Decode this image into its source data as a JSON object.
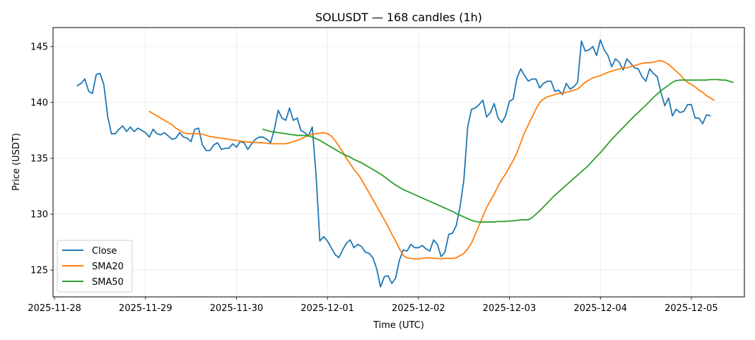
{
  "chart_data": {
    "type": "line",
    "title": "SOLUSDT — 168 candles (1h)",
    "xlabel": "Time (UTC)",
    "ylabel": "Price (USDT)",
    "x_ticks": [
      "2025-11-28",
      "2025-11-29",
      "2025-11-30",
      "2025-12-01",
      "2025-12-02",
      "2025-12-03",
      "2025-12-04",
      "2025-12-05"
    ],
    "x_range": [
      -6.4,
      176.0
    ],
    "x_tick_hours": [
      -6,
      18,
      42,
      66,
      90,
      114,
      138,
      162
    ],
    "ylim": [
      122.6,
      146.7
    ],
    "y_ticks": [
      125,
      130,
      135,
      140,
      145
    ],
    "grid": true,
    "legend_position": "lower-left",
    "colors": {
      "Close": "#1f77b4",
      "SMA20": "#ff7f0e",
      "SMA50": "#2ca02c"
    },
    "series": [
      {
        "name": "Close",
        "x_start_hour": 0,
        "values": [
          141.5,
          141.7,
          142.1,
          141.0,
          140.8,
          142.5,
          142.6,
          141.6,
          138.8,
          137.2,
          137.2,
          137.6,
          137.9,
          137.4,
          137.8,
          137.4,
          137.7,
          137.5,
          137.3,
          136.9,
          137.6,
          137.2,
          137.1,
          137.3,
          137.0,
          136.7,
          136.8,
          137.3,
          136.9,
          136.8,
          136.5,
          137.6,
          137.7,
          136.2,
          135.7,
          135.7,
          136.2,
          136.4,
          135.8,
          135.9,
          135.9,
          136.3,
          136.0,
          136.5,
          136.4,
          135.8,
          136.3,
          136.7,
          136.9,
          136.9,
          136.7,
          136.4,
          137.6,
          139.3,
          138.6,
          138.4,
          139.5,
          138.4,
          138.6,
          137.5,
          137.3,
          137.0,
          137.8,
          133.5,
          127.6,
          128.0,
          127.6,
          127.0,
          126.4,
          126.1,
          126.8,
          127.4,
          127.7,
          127.0,
          127.3,
          127.1,
          126.6,
          126.5,
          126.1,
          125.1,
          123.5,
          124.4,
          124.5,
          123.8,
          124.3,
          125.9,
          126.8,
          126.7,
          127.3,
          127.0,
          127.0,
          127.2,
          126.9,
          126.7,
          127.7,
          127.3,
          126.2,
          126.6,
          128.2,
          128.3,
          129.0,
          130.7,
          133.1,
          137.8,
          139.4,
          139.5,
          139.8,
          140.2,
          138.7,
          139.1,
          139.9,
          138.6,
          138.2,
          138.8,
          140.1,
          140.3,
          142.2,
          143.0,
          142.4,
          141.9,
          142.1,
          142.1,
          141.3,
          141.7,
          141.9,
          141.9,
          141.0,
          141.1,
          140.7,
          141.7,
          141.2,
          141.4,
          141.8,
          145.5,
          144.6,
          144.7,
          145.0,
          144.2,
          145.6,
          144.7,
          144.2,
          143.2,
          143.9,
          143.6,
          142.9,
          143.9,
          143.5,
          143.1,
          143.0,
          142.3,
          141.9,
          143.0,
          142.6,
          142.3,
          140.9,
          139.7,
          140.4,
          138.8,
          139.4,
          139.1,
          139.2,
          139.8,
          139.8,
          138.6,
          138.6,
          138.1,
          138.9,
          138.8
        ]
      },
      {
        "name": "SMA20",
        "x_start_hour": 19,
        "values": [
          139.2,
          139.0,
          138.8,
          138.6,
          138.4,
          138.2,
          138.0,
          137.7,
          137.5,
          137.3,
          137.2,
          137.2,
          137.2,
          137.2,
          137.15,
          137.05,
          136.95,
          136.9,
          136.85,
          136.8,
          136.75,
          136.7,
          136.65,
          136.6,
          136.55,
          136.5,
          136.45,
          136.45,
          136.4,
          136.4,
          136.4,
          136.35,
          136.3,
          136.3,
          136.3,
          136.3,
          136.3,
          136.4,
          136.5,
          136.6,
          136.75,
          136.9,
          137.05,
          137.15,
          137.2,
          137.25,
          137.3,
          137.2,
          137.0,
          136.6,
          136.1,
          135.6,
          135.0,
          134.5,
          134.0,
          133.6,
          133.1,
          132.5,
          131.9,
          131.3,
          130.7,
          130.1,
          129.5,
          128.9,
          128.2,
          127.6,
          126.9,
          126.3,
          126.1,
          126.05,
          126.0,
          126.0,
          126.05,
          126.1,
          126.1,
          126.05,
          126.05,
          126.0,
          126.05,
          126.05,
          126.05,
          126.1,
          126.3,
          126.5,
          126.9,
          127.4,
          128.2,
          129.0,
          129.8,
          130.6,
          131.2,
          131.8,
          132.5,
          133.1,
          133.6,
          134.2,
          134.8,
          135.5,
          136.4,
          137.3,
          138.0,
          138.7,
          139.4,
          140.0,
          140.3,
          140.5,
          140.6,
          140.7,
          140.8,
          140.8,
          140.9,
          141.0,
          141.1,
          141.2,
          141.5,
          141.8,
          142.0,
          142.2,
          142.3,
          142.4,
          142.55,
          142.7,
          142.8,
          142.9,
          143.0,
          143.1,
          143.1,
          143.2,
          143.3,
          143.4,
          143.5,
          143.55,
          143.55,
          143.6,
          143.7,
          143.75,
          143.6,
          143.4,
          143.1,
          142.8,
          142.5,
          142.1,
          141.8,
          141.6,
          141.4,
          141.1,
          140.9,
          140.6,
          140.4,
          140.2
        ]
      },
      {
        "name": "SMA50",
        "x_start_hour": 49,
        "values": [
          137.6,
          137.5,
          137.4,
          137.35,
          137.3,
          137.25,
          137.2,
          137.15,
          137.1,
          137.05,
          137.05,
          137.05,
          137.0,
          136.9,
          136.75,
          136.6,
          136.4,
          136.2,
          136.0,
          135.8,
          135.6,
          135.4,
          135.25,
          135.1,
          134.9,
          134.75,
          134.6,
          134.4,
          134.2,
          134.0,
          133.8,
          133.6,
          133.35,
          133.1,
          132.85,
          132.6,
          132.4,
          132.2,
          132.05,
          131.9,
          131.75,
          131.6,
          131.45,
          131.3,
          131.15,
          131.0,
          130.85,
          130.7,
          130.55,
          130.4,
          130.25,
          130.05,
          129.9,
          129.75,
          129.6,
          129.45,
          129.35,
          129.3,
          129.3,
          129.3,
          129.3,
          129.3,
          129.35,
          129.35,
          129.35,
          129.4,
          129.4,
          129.45,
          129.5,
          129.5,
          129.5,
          129.7,
          130.0,
          130.3,
          130.65,
          131.0,
          131.35,
          131.7,
          132.0,
          132.3,
          132.6,
          132.9,
          133.2,
          133.5,
          133.8,
          134.1,
          134.4,
          134.8,
          135.15,
          135.5,
          135.9,
          136.3,
          136.7,
          137.05,
          137.4,
          137.75,
          138.1,
          138.45,
          138.8,
          139.1,
          139.45,
          139.75,
          140.1,
          140.45,
          140.75,
          141.05,
          141.3,
          141.55,
          141.8,
          141.95,
          142.0,
          142.0,
          142.0,
          142.0,
          142.0,
          142.0,
          142.0,
          142.0,
          142.05,
          142.05,
          142.05,
          142.0,
          142.0,
          141.9,
          141.8
        ]
      }
    ]
  }
}
